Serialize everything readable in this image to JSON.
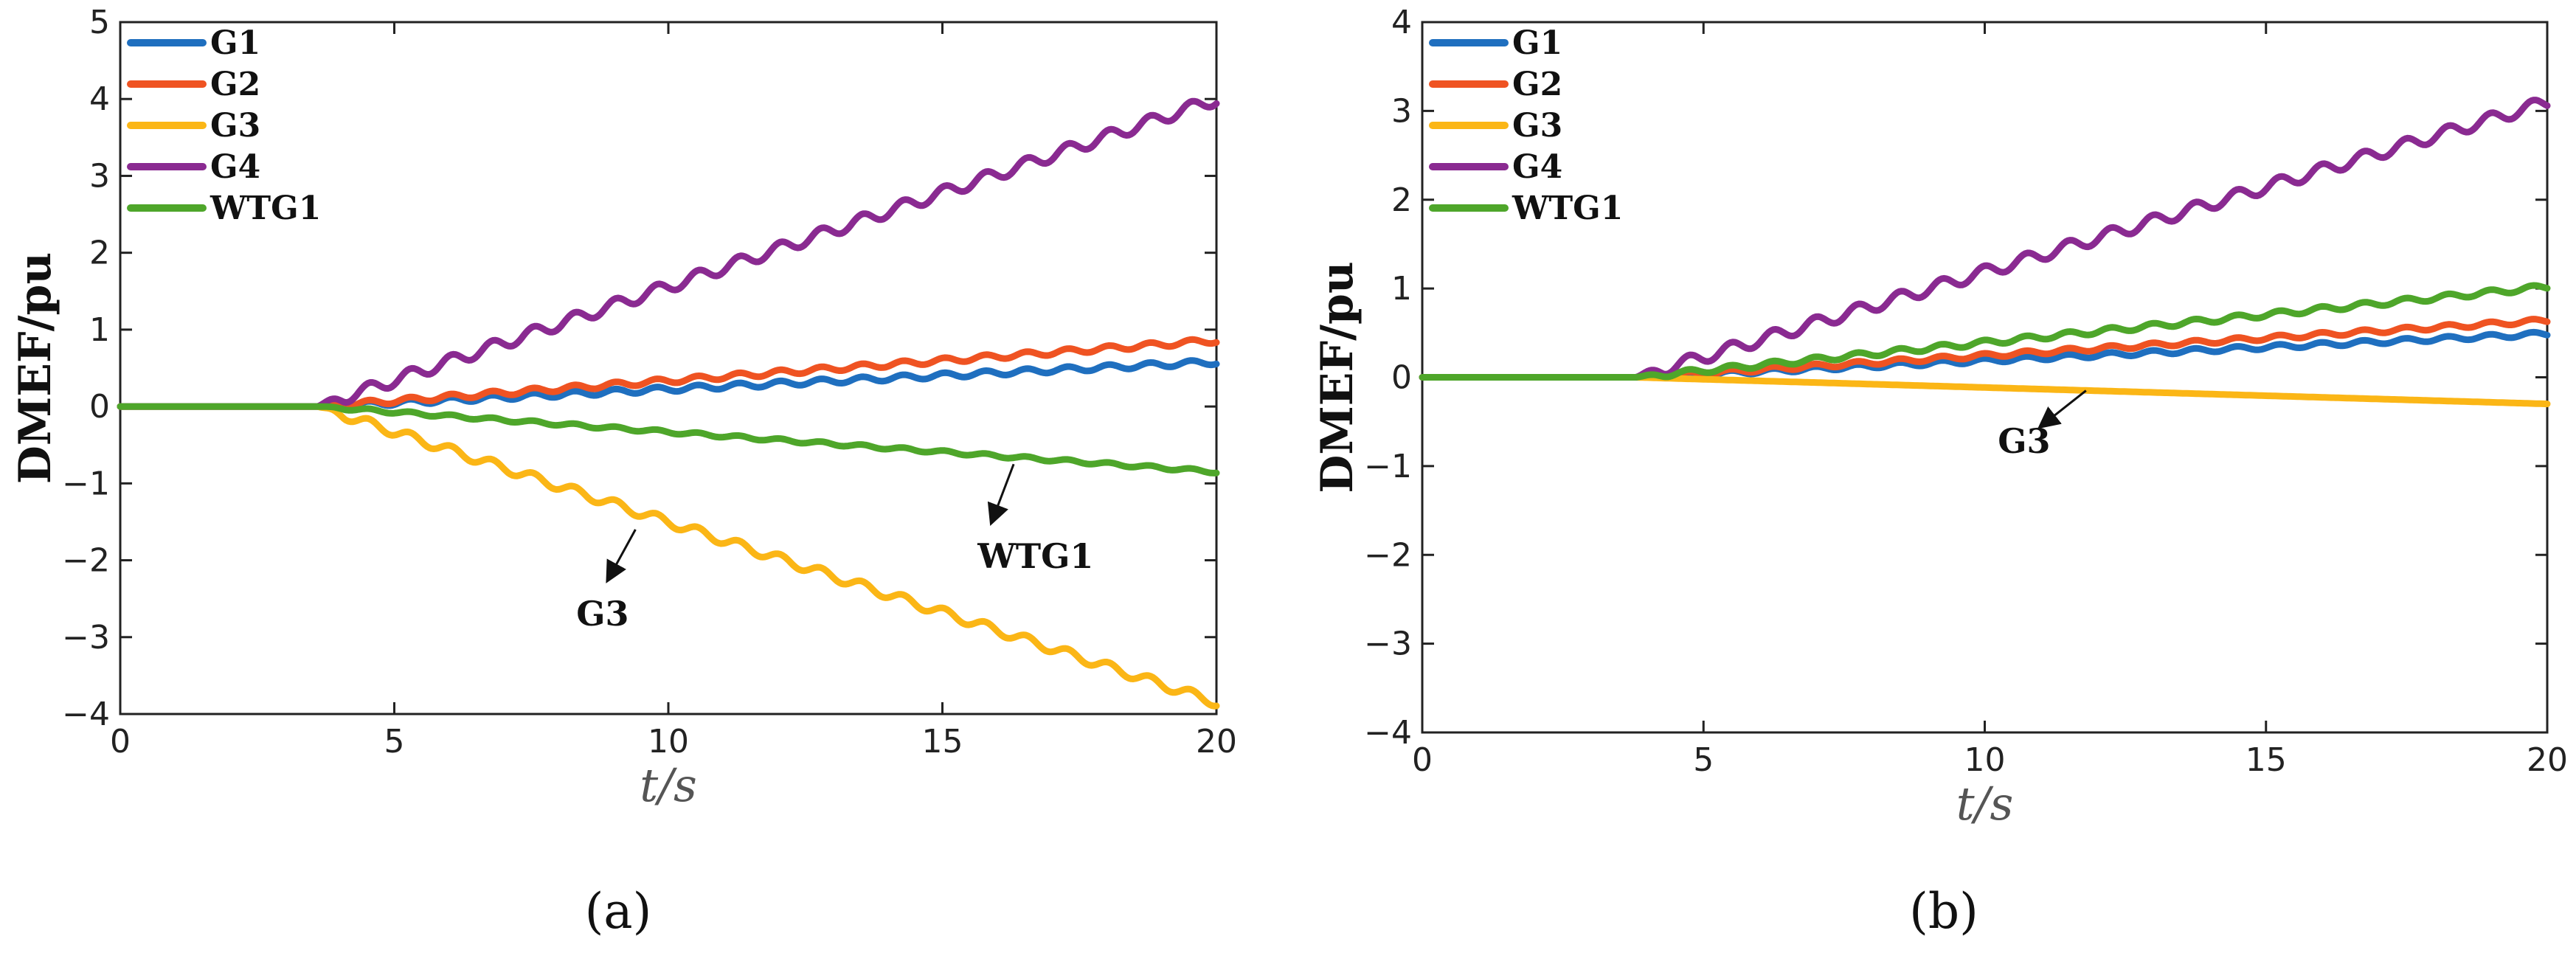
{
  "figure": {
    "panel_labels": [
      "(a)",
      "(b)"
    ]
  },
  "chart_data": [
    {
      "type": "line",
      "panel": "(a)",
      "xlabel": "t/s",
      "ylabel": "DMEF/pu",
      "xlim": [
        0,
        20
      ],
      "ylim": [
        -4,
        5
      ],
      "xticks": [
        0,
        5,
        10,
        15,
        20
      ],
      "yticks": [
        -4,
        -3,
        -2,
        -1,
        0,
        1,
        2,
        3,
        4,
        5
      ],
      "legend_position": "top-left",
      "series": [
        {
          "name": "G1",
          "color": "#1f6fbf",
          "start": 3.6,
          "end_value": 0.58,
          "osc_amp": 0.035,
          "osc_period": 0.75
        },
        {
          "name": "G2",
          "color": "#ef5322",
          "start": 3.6,
          "end_value": 0.86,
          "osc_amp": 0.035,
          "osc_period": 0.75
        },
        {
          "name": "G3",
          "color": "#fbb616",
          "start": 3.6,
          "end_value": -3.85,
          "osc_amp": 0.06,
          "osc_period": 0.75
        },
        {
          "name": "G4",
          "color": "#8a2a91",
          "start": 3.6,
          "end_value": 4.0,
          "osc_amp": 0.08,
          "osc_period": 0.75
        },
        {
          "name": "WTG1",
          "color": "#4ea62a",
          "start": 3.6,
          "end_value": -0.85,
          "osc_amp": 0.02,
          "osc_period": 0.75
        }
      ],
      "annotations": [
        {
          "text": "G3",
          "arrow_from": [
            9.4,
            -1.6
          ],
          "arrow_to": [
            8.9,
            -2.25
          ],
          "text_at": [
            8.8,
            -2.85
          ]
        },
        {
          "text": "WTG1",
          "arrow_from": [
            16.3,
            -0.75
          ],
          "arrow_to": [
            15.9,
            -1.5
          ],
          "text_at": [
            16.7,
            -2.1
          ]
        }
      ]
    },
    {
      "type": "line",
      "panel": "(b)",
      "xlabel": "t/s",
      "ylabel": "DMEF/pu",
      "xlim": [
        0,
        20
      ],
      "ylim": [
        -4,
        4
      ],
      "xticks": [
        0,
        5,
        10,
        15,
        20
      ],
      "yticks": [
        -4,
        -3,
        -2,
        -1,
        0,
        1,
        2,
        3,
        4
      ],
      "legend_position": "top-left",
      "series": [
        {
          "name": "G1",
          "color": "#1f6fbf",
          "start": 3.8,
          "end_value": 0.49,
          "osc_amp": 0.025,
          "osc_period": 0.75
        },
        {
          "name": "G2",
          "color": "#ef5322",
          "start": 3.8,
          "end_value": 0.64,
          "osc_amp": 0.025,
          "osc_period": 0.75
        },
        {
          "name": "G3",
          "color": "#fbb616",
          "start": 3.8,
          "end_value": -0.3,
          "osc_amp": 0.0,
          "osc_period": 0.75
        },
        {
          "name": "G4",
          "color": "#8a2a91",
          "start": 3.8,
          "end_value": 3.1,
          "osc_amp": 0.07,
          "osc_period": 0.75
        },
        {
          "name": "WTG1",
          "color": "#4ea62a",
          "start": 3.8,
          "end_value": 1.02,
          "osc_amp": 0.03,
          "osc_period": 0.75
        }
      ],
      "annotations": [
        {
          "text": "G3",
          "arrow_from": [
            11.8,
            -0.15
          ],
          "arrow_to": [
            11.0,
            -0.55
          ],
          "text_at": [
            10.7,
            -0.85
          ]
        }
      ]
    }
  ]
}
